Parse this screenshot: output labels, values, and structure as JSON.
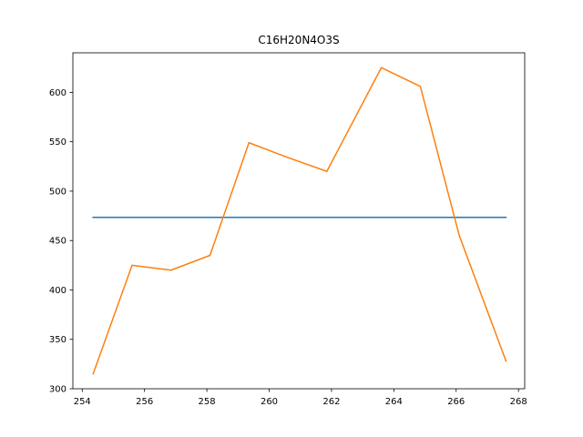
{
  "chart_data": {
    "type": "line",
    "title": "C16H20N4O3S",
    "xlabel": "",
    "ylabel": "",
    "xlim": [
      253.7,
      268.2
    ],
    "ylim": [
      300,
      640
    ],
    "x_ticks": [
      254,
      256,
      258,
      260,
      262,
      264,
      266,
      268
    ],
    "y_ticks": [
      300,
      350,
      400,
      450,
      500,
      550,
      600
    ],
    "grid": false,
    "series": [
      {
        "color": "#1f77b4",
        "x": [
          254.35,
          267.6
        ],
        "y": [
          473.5,
          473.5
        ]
      },
      {
        "color": "#ff7f0e",
        "x": [
          254.35,
          255.6,
          256.85,
          258.1,
          259.35,
          260.6,
          261.85,
          263.6,
          264.85,
          266.1,
          267.6
        ],
        "y": [
          315,
          425,
          420,
          435,
          549,
          534,
          520,
          625,
          606,
          455,
          328
        ]
      }
    ]
  }
}
